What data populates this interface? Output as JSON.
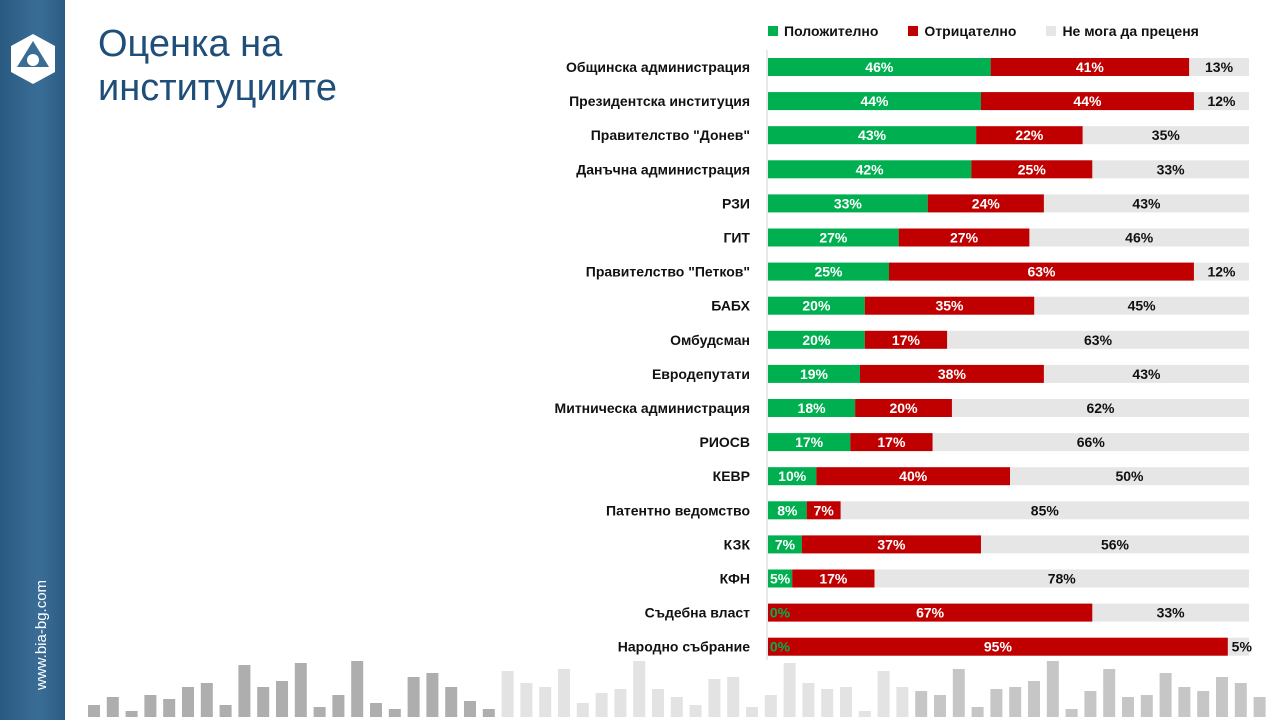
{
  "title_line1": "Оценка на",
  "title_line2": "институциите",
  "site": "www.bia-bg.com",
  "colors": {
    "positive": "#00b050",
    "negative": "#c00000",
    "unsure": "#e6e6e6",
    "title": "#1f4e79"
  },
  "chart_data": {
    "type": "bar",
    "stacked": true,
    "orientation": "horizontal",
    "xlim": [
      0,
      100
    ],
    "legend_position": "top",
    "categories": [
      "Общинска администрация",
      "Президентска институция",
      "Правителство \"Донев\"",
      "Данъчна администрация",
      "РЗИ",
      "ГИТ",
      "Правителство \"Петков\"",
      "БАБХ",
      "Омбудсман",
      "Евродепутати",
      "Митническа администрация",
      "РИОСВ",
      "КЕВР",
      "Патентно ведомство",
      "КЗК",
      "КФН",
      "Съдебна власт",
      "Народно събрание"
    ],
    "series": [
      {
        "name": "Положително",
        "values": [
          46,
          44,
          43,
          42,
          33,
          27,
          25,
          20,
          20,
          19,
          18,
          17,
          10,
          8,
          7,
          5,
          0,
          0
        ]
      },
      {
        "name": "Отрицателно",
        "values": [
          41,
          44,
          22,
          25,
          24,
          27,
          63,
          35,
          17,
          38,
          20,
          17,
          40,
          7,
          37,
          17,
          67,
          95
        ]
      },
      {
        "name": "Не мога да преценя",
        "values": [
          13,
          12,
          35,
          33,
          43,
          46,
          12,
          45,
          63,
          43,
          62,
          66,
          50,
          85,
          56,
          78,
          33,
          5
        ]
      }
    ]
  }
}
